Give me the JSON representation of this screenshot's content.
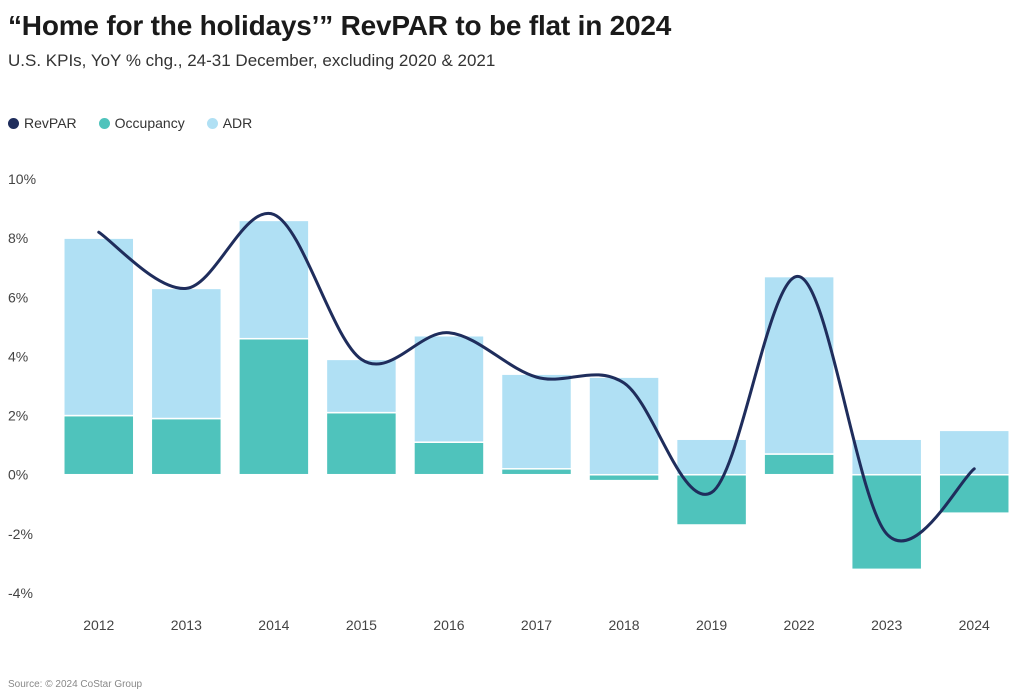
{
  "header": {
    "title": "“Home for the holidays’” RevPAR to be flat in 2024",
    "subtitle": "U.S. KPIs, YoY % chg., 24-31 December, excluding 2020 & 2021"
  },
  "legend": [
    {
      "label": "RevPAR",
      "color": "#1f2d5c"
    },
    {
      "label": "Occupancy",
      "color": "#4fc3bc"
    },
    {
      "label": "ADR",
      "color": "#b0e0f4"
    }
  ],
  "footer": {
    "source": "Source: © 2024 CoStar Group"
  },
  "chart_data": {
    "type": "bar",
    "stacked": true,
    "categories": [
      "2012",
      "2013",
      "2014",
      "2015",
      "2016",
      "2017",
      "2018",
      "2019",
      "2022",
      "2023",
      "2024"
    ],
    "series": [
      {
        "name": "Occupancy",
        "type": "bar",
        "color": "#4fc3bc",
        "values": [
          2.0,
          1.9,
          4.6,
          2.1,
          1.1,
          0.2,
          -0.2,
          -1.7,
          0.7,
          -3.2,
          -1.3
        ]
      },
      {
        "name": "ADR",
        "type": "bar",
        "color": "#b0e0f4",
        "values": [
          6.0,
          4.4,
          4.0,
          1.8,
          3.6,
          3.2,
          3.3,
          1.2,
          6.0,
          1.2,
          1.5
        ]
      },
      {
        "name": "RevPAR",
        "type": "line",
        "color": "#1f2d5c",
        "values": [
          8.2,
          6.3,
          8.8,
          3.9,
          4.8,
          3.3,
          3.1,
          -0.6,
          6.7,
          -2.0,
          0.2
        ]
      }
    ],
    "ylim": [
      -4,
      10
    ],
    "yticks": [
      -4,
      -2,
      0,
      2,
      4,
      6,
      8,
      10
    ],
    "ytick_labels": [
      "-4%",
      "-2%",
      "0%",
      "2%",
      "4%",
      "6%",
      "8%",
      "10%"
    ],
    "grid": false,
    "legend_position": "top-left"
  }
}
